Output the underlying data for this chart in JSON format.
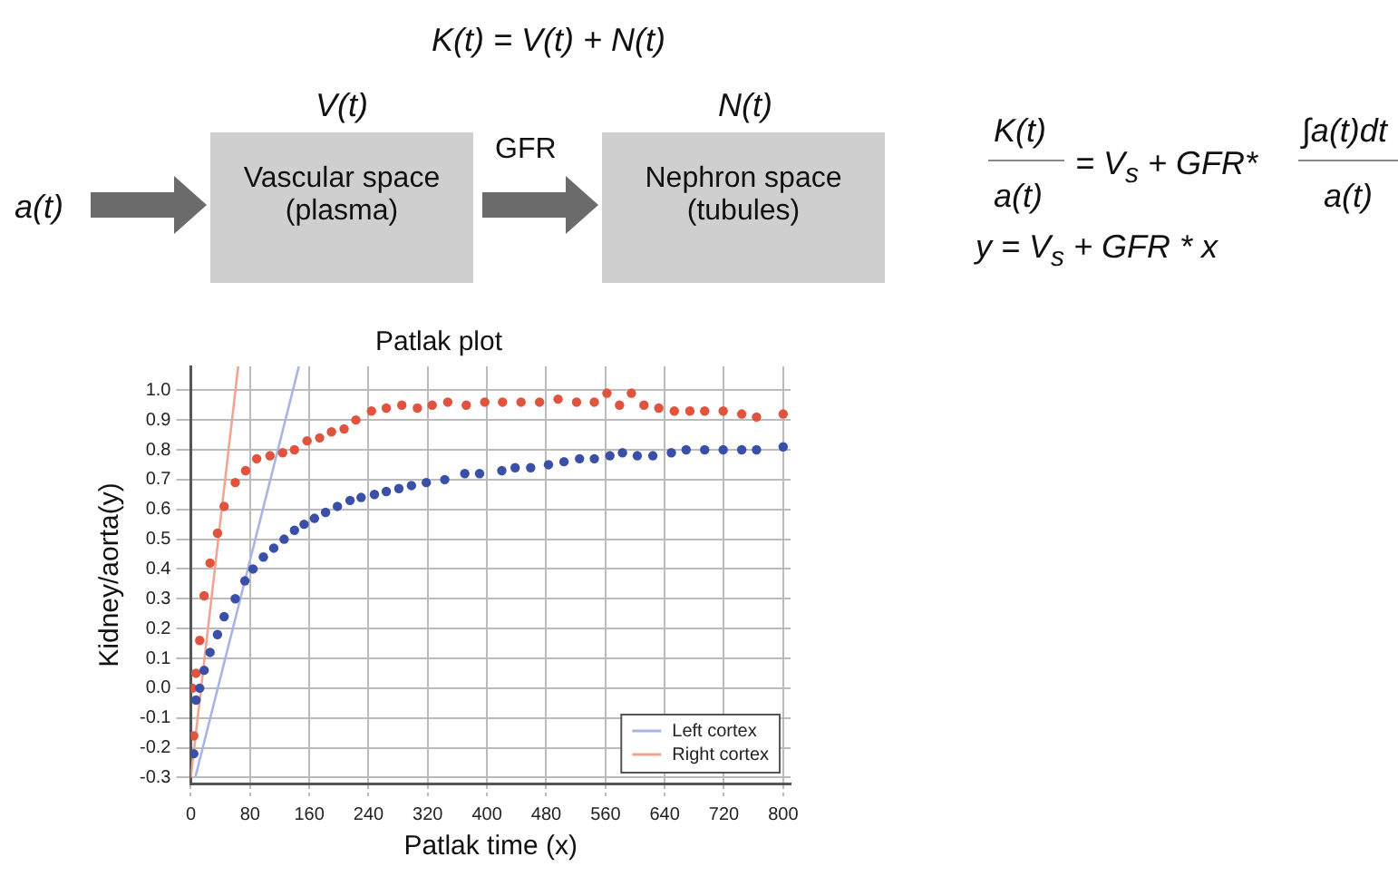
{
  "chart_data": {
    "type": "scatter",
    "title": "Patlak plot",
    "xlabel": "Patlak time (x)",
    "ylabel": "Kidney/aorta(y)",
    "annotations": [
      "K(t) = V(t) + N(t)",
      "V(t)",
      "N(t)",
      "a(t)",
      "Vascular space (plasma)",
      "GFR",
      "Nephron space (tubules)",
      "K(t)",
      "a(t)",
      "= V$_{s}$ + GFR*",
      "∫a(t)dt",
      "a(t)",
      "y = V$_{s}$ + GFR * x"
    ],
    "xlim": [
      0,
      810
    ],
    "xticks": [
      0,
      80,
      160,
      240,
      320,
      400,
      480,
      560,
      640,
      720,
      800
    ],
    "ylim": [
      -0.32,
      1.08
    ],
    "yticks": [
      -0.3,
      -0.2,
      -0.1,
      {
        "value": 0,
        "label": "0.0"
      },
      0.1,
      0.2,
      0.3,
      0.4,
      0.5,
      0.6,
      0.7,
      0.8,
      0.9,
      {
        "value": 1,
        "label": "1.0"
      }
    ],
    "grid": true,
    "legend": "bottom right",
    "marker": "circle",
    "series": [
      {
        "type": "scatter",
        "color": "#3a4fa8",
        "x": [
          4,
          7,
          12,
          18,
          26,
          36,
          45,
          60,
          73,
          84,
          98,
          112,
          126,
          140,
          153,
          167,
          182,
          198,
          215,
          230,
          248,
          264,
          281,
          298,
          318,
          343,
          370,
          390,
          420,
          438,
          459,
          483,
          504,
          525,
          545,
          566,
          583,
          603,
          624,
          649,
          669,
          694,
          719,
          744,
          764,
          800
        ],
        "values": [
          -0.22,
          -0.04,
          0.0,
          0.06,
          0.12,
          0.18,
          0.24,
          0.3,
          0.36,
          0.4,
          0.44,
          0.47,
          0.5,
          0.53,
          0.55,
          0.57,
          0.59,
          0.61,
          0.63,
          0.64,
          0.65,
          0.66,
          0.67,
          0.68,
          0.69,
          0.7,
          0.72,
          0.72,
          0.73,
          0.74,
          0.74,
          0.75,
          0.76,
          0.77,
          0.77,
          0.78,
          0.79,
          0.78,
          0.78,
          0.79,
          0.8,
          0.8,
          0.8,
          0.8,
          0.8,
          0.81
        ]
      },
      {
        "type": "scatter",
        "color": "#e0533f",
        "x": [
          2,
          4,
          7,
          12,
          18,
          26,
          36,
          45,
          60,
          74,
          89,
          107,
          124,
          140,
          157,
          174,
          190,
          207,
          223,
          244,
          264,
          285,
          306,
          326,
          347,
          372,
          397,
          421,
          446,
          471,
          496,
          521,
          545,
          562,
          579,
          595,
          612,
          632,
          653,
          674,
          694,
          719,
          744,
          764,
          800
        ],
        "values": [
          0.0,
          -0.16,
          0.05,
          0.16,
          0.31,
          0.42,
          0.52,
          0.61,
          0.69,
          0.73,
          0.77,
          0.78,
          0.79,
          0.8,
          0.83,
          0.84,
          0.86,
          0.87,
          0.9,
          0.93,
          0.94,
          0.95,
          0.94,
          0.95,
          0.96,
          0.95,
          0.96,
          0.96,
          0.96,
          0.96,
          0.97,
          0.96,
          0.96,
          0.99,
          0.95,
          0.99,
          0.95,
          0.94,
          0.93,
          0.93,
          0.93,
          0.93,
          0.92,
          0.91,
          0.92
        ]
      },
      {
        "type": "line",
        "name": "Left cortex",
        "color": "#a9b4e6",
        "line_style": "solid",
        "marker": "none",
        "x": [
          6,
          146
        ],
        "values": [
          -0.3,
          1.08
        ]
      },
      {
        "type": "line",
        "name": "Right cortex",
        "color": "#f0a592",
        "line_style": "solid",
        "marker": "none",
        "x": [
          0,
          64
        ],
        "values": [
          -0.3,
          1.08
        ]
      }
    ]
  }
}
